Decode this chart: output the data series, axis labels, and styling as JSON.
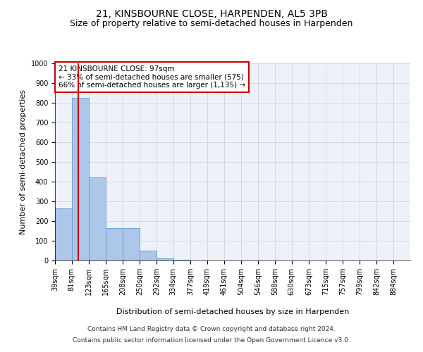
{
  "title": "21, KINSBOURNE CLOSE, HARPENDEN, AL5 3PB",
  "subtitle": "Size of property relative to semi-detached houses in Harpenden",
  "xlabel": "Distribution of semi-detached houses by size in Harpenden",
  "ylabel": "Number of semi-detached properties",
  "annotation_line1": "21 KINSBOURNE CLOSE: 97sqm",
  "annotation_line2": "← 33% of semi-detached houses are smaller (575)",
  "annotation_line3": "66% of semi-detached houses are larger (1,135) →",
  "footer_line1": "Contains HM Land Registry data © Crown copyright and database right 2024.",
  "footer_line2": "Contains public sector information licensed under the Open Government Licence v3.0.",
  "property_size": 97,
  "bar_edges": [
    39,
    81,
    123,
    165,
    208,
    250,
    292,
    334,
    377,
    419,
    461,
    504,
    546,
    588,
    630,
    673,
    715,
    757,
    799,
    842,
    884
  ],
  "bar_values": [
    265,
    825,
    420,
    165,
    165,
    50,
    12,
    5,
    0,
    0,
    0,
    0,
    0,
    0,
    0,
    0,
    0,
    0,
    0,
    0
  ],
  "bar_color": "#aec6e8",
  "bar_edge_color": "#5a9fd4",
  "vline_color": "#cc0000",
  "vline_x": 97,
  "ylim": [
    0,
    1000
  ],
  "yticks": [
    0,
    100,
    200,
    300,
    400,
    500,
    600,
    700,
    800,
    900,
    1000
  ],
  "grid_color": "#d0d8e8",
  "background_color": "#eef2f8",
  "annotation_box_color": "#ffffff",
  "annotation_box_edge_color": "#cc0000",
  "title_fontsize": 10,
  "subtitle_fontsize": 9,
  "axis_label_fontsize": 8,
  "tick_fontsize": 7,
  "annotation_fontsize": 7.5,
  "footer_fontsize": 6.5
}
